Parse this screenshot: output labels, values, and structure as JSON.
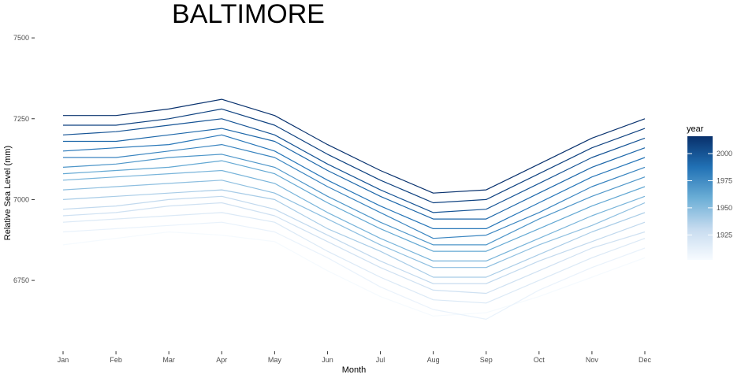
{
  "chart_data": {
    "type": "line",
    "title": "BALTIMORE",
    "xlabel": "Month",
    "ylabel": "Relative Sea Level (mm)",
    "categories": [
      "Jan",
      "Feb",
      "Mar",
      "Apr",
      "May",
      "Jun",
      "Jul",
      "Aug",
      "Sep",
      "Oct",
      "Nov",
      "Dec"
    ],
    "ylim": [
      6570,
      7510
    ],
    "yticks": [
      6750,
      7000,
      7250,
      7500
    ],
    "yticks_labels": [
      "6750",
      "7000",
      "7250",
      "7500"
    ],
    "grid": false,
    "legend": {
      "title": "year",
      "placement": "right",
      "type": "continuous colorbar",
      "range": [
        1902,
        2016
      ],
      "ticks": [
        1925,
        1950,
        1975,
        2000
      ],
      "tick_labels": [
        "1925",
        "1950",
        "1975",
        "2000"
      ],
      "color_low": "#f7fbff",
      "color_high": "#08306b"
    },
    "year_range": [
      1902,
      2016
    ],
    "series_color_by": "year",
    "series_note_counts": 115,
    "series": [
      {
        "year": 1903,
        "values": [
          6860,
          6880,
          6900,
          6890,
          6870,
          6780,
          6700,
          6640,
          6650,
          6700,
          6760,
          6820
        ]
      },
      {
        "year": 1910,
        "values": [
          6900,
          6910,
          6920,
          6930,
          6900,
          6820,
          6730,
          6660,
          6630,
          6720,
          6790,
          6850
        ]
      },
      {
        "year": 1918,
        "values": [
          6930,
          6940,
          6950,
          6960,
          6930,
          6840,
          6760,
          6690,
          6680,
          6750,
          6820,
          6880
        ]
      },
      {
        "year": 1925,
        "values": [
          6950,
          6960,
          6980,
          6990,
          6950,
          6870,
          6790,
          6720,
          6710,
          6780,
          6850,
          6900
        ]
      },
      {
        "year": 1932,
        "values": [
          6970,
          6980,
          7000,
          7010,
          6970,
          6890,
          6810,
          6740,
          6740,
          6810,
          6870,
          6930
        ]
      },
      {
        "year": 1940,
        "values": [
          7000,
          7010,
          7020,
          7030,
          7000,
          6910,
          6840,
          6760,
          6760,
          6830,
          6900,
          6960
        ]
      },
      {
        "year": 1948,
        "values": [
          7030,
          7040,
          7050,
          7060,
          7020,
          6940,
          6860,
          6790,
          6790,
          6860,
          6920,
          6990
        ]
      },
      {
        "year": 1955,
        "values": [
          7060,
          7070,
          7080,
          7090,
          7050,
          6960,
          6880,
          6810,
          6810,
          6880,
          6950,
          7010
        ]
      },
      {
        "year": 1962,
        "values": [
          7080,
          7090,
          7100,
          7120,
          7080,
          6990,
          6910,
          6840,
          6840,
          6910,
          6980,
          7040
        ]
      },
      {
        "year": 1970,
        "values": [
          7100,
          7110,
          7130,
          7140,
          7100,
          7010,
          6930,
          6860,
          6860,
          6940,
          7010,
          7070
        ]
      },
      {
        "year": 1978,
        "values": [
          7130,
          7130,
          7150,
          7170,
          7130,
          7040,
          6960,
          6880,
          6890,
          6960,
          7040,
          7100
        ]
      },
      {
        "year": 1985,
        "values": [
          7150,
          7160,
          7170,
          7200,
          7150,
          7060,
          6980,
          6910,
          6910,
          6990,
          7070,
          7130
        ]
      },
      {
        "year": 1992,
        "values": [
          7180,
          7180,
          7200,
          7220,
          7180,
          7090,
          7010,
          6940,
          6940,
          7020,
          7100,
          7160
        ]
      },
      {
        "year": 2000,
        "values": [
          7200,
          7210,
          7230,
          7250,
          7200,
          7110,
          7030,
          6960,
          6970,
          7050,
          7130,
          7190
        ]
      },
      {
        "year": 2008,
        "values": [
          7230,
          7230,
          7250,
          7280,
          7230,
          7140,
          7060,
          6990,
          7000,
          7080,
          7160,
          7220
        ]
      },
      {
        "year": 2015,
        "values": [
          7260,
          7260,
          7280,
          7310,
          7260,
          7170,
          7090,
          7020,
          7030,
          7110,
          7190,
          7250
        ]
      }
    ]
  }
}
